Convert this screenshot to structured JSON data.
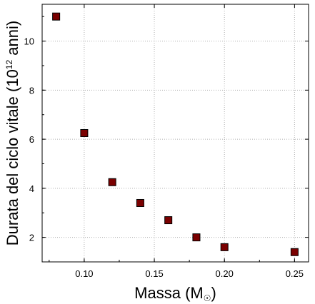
{
  "chart_data": {
    "type": "scatter",
    "title": "",
    "xlabel": "Massa (M",
    "xlabel_symbol": "☉",
    "xlabel_close": ")",
    "ylabel": "Durata del ciclo vitale (10",
    "ylabel_superscript": "12",
    "ylabel_close": " anni)",
    "xlim": [
      0.07,
      0.26
    ],
    "ylim": [
      1.0,
      11.5
    ],
    "xticks": [
      0.1,
      0.15,
      0.2,
      0.25
    ],
    "xtick_labels": [
      "0.10",
      "0.15",
      "0.20",
      "0.25"
    ],
    "yticks": [
      2,
      4,
      6,
      8,
      10
    ],
    "ytick_labels": [
      "2",
      "4",
      "6",
      "8",
      "10"
    ],
    "grid": true,
    "marker": "square",
    "marker_color": "#7a0000",
    "series": [
      {
        "x": [
          0.08,
          0.1,
          0.12,
          0.14,
          0.16,
          0.18,
          0.2,
          0.25
        ],
        "y": [
          11.0,
          6.25,
          4.25,
          3.4,
          2.7,
          2.0,
          1.6,
          1.4
        ]
      }
    ]
  }
}
